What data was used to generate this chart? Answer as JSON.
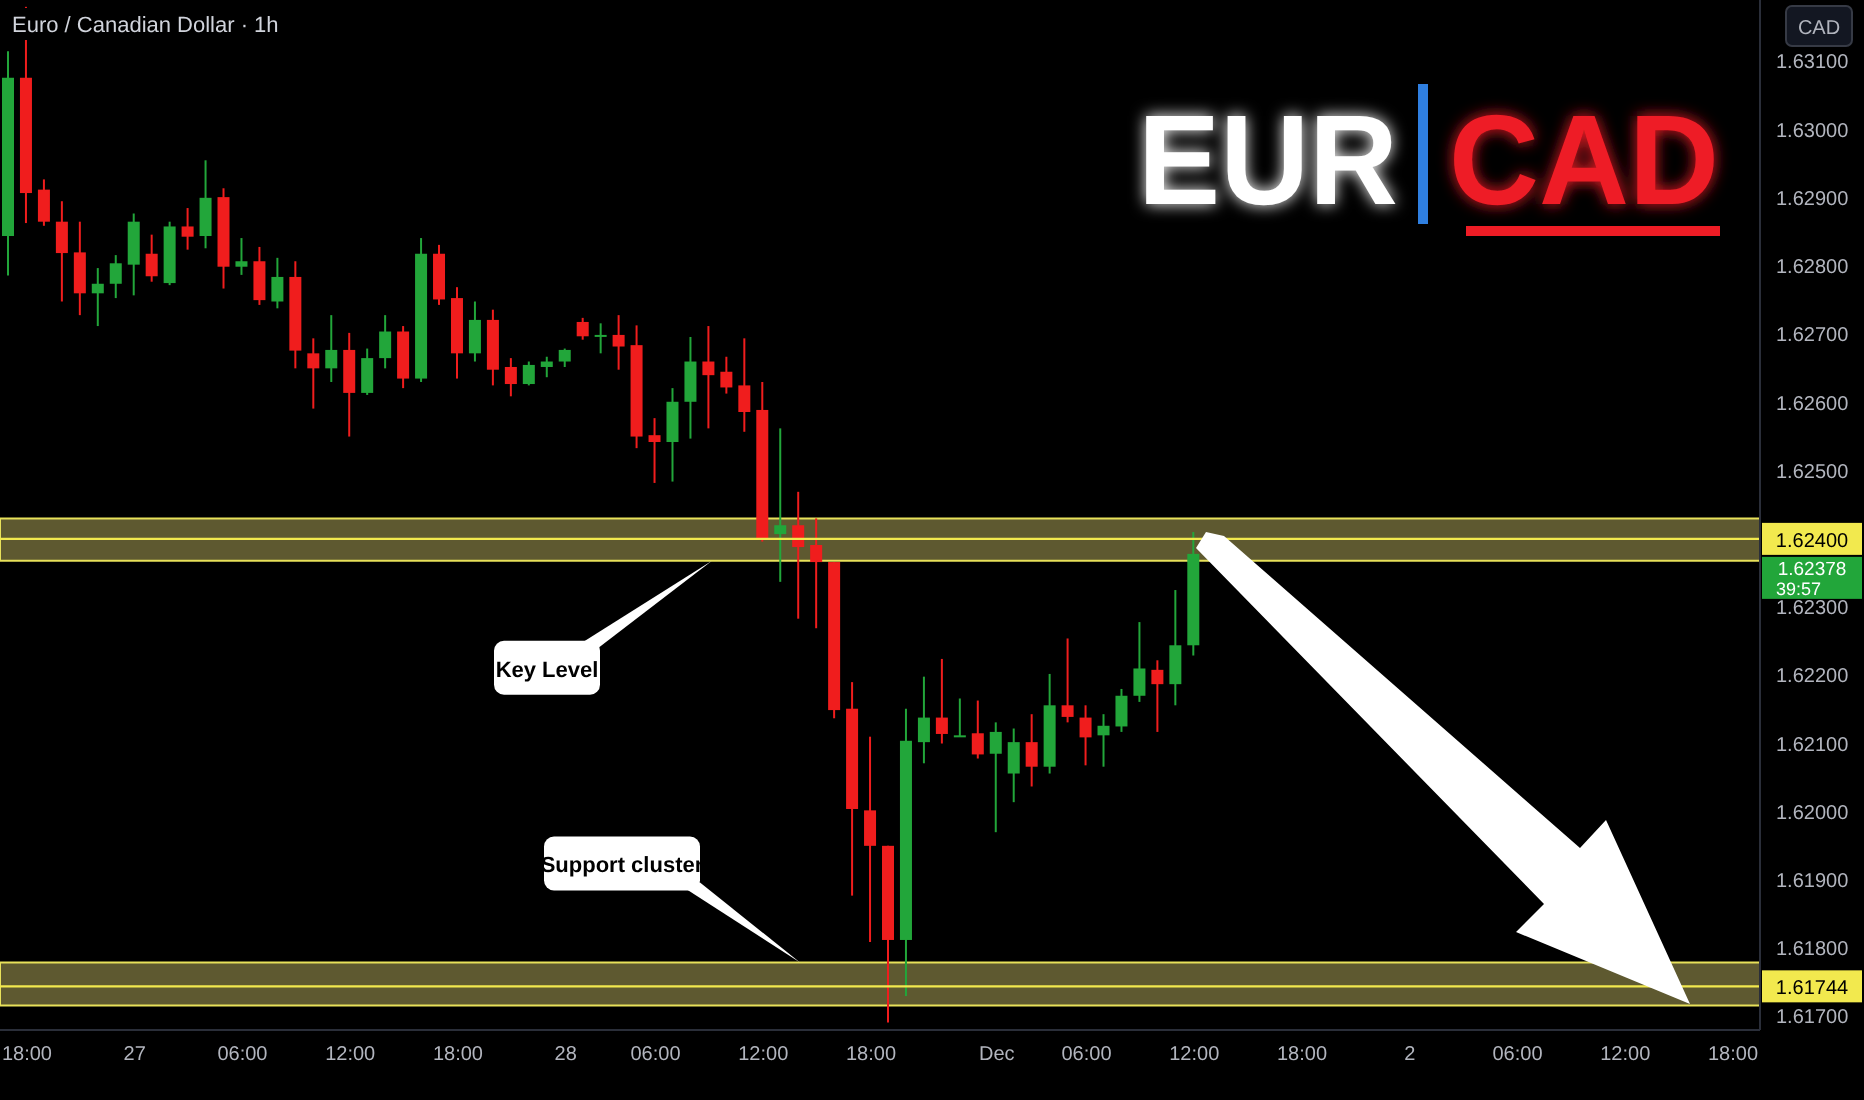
{
  "chart_data": {
    "type": "candlestick",
    "title": "Euro / Canadian Dollar · 1h",
    "ylabel": "CAD",
    "categories": [
      null,
      "18:00",
      null,
      null,
      null,
      null,
      null,
      "27",
      null,
      null,
      null,
      null,
      null,
      "06:00",
      null,
      null,
      null,
      null,
      null,
      "12:00",
      null,
      null,
      null,
      null,
      null,
      "18:00",
      null,
      null,
      null,
      null,
      null,
      "28",
      null,
      null,
      null,
      null,
      "06:00",
      null,
      null,
      null,
      null,
      null,
      "12:00",
      null,
      null,
      null,
      null,
      null,
      "18:00",
      null,
      null,
      null,
      null,
      null,
      null,
      "Dec",
      null,
      null,
      null,
      null,
      "06:00",
      null,
      null,
      null,
      null,
      null,
      "12:00",
      null,
      null,
      null,
      null,
      null,
      "18:00",
      null,
      null,
      null,
      null,
      null,
      "2",
      null,
      null,
      null,
      null,
      null,
      "06:00",
      null,
      null,
      null,
      null,
      null,
      "12:00",
      null,
      null,
      null,
      null,
      null,
      "18:00",
      null
    ],
    "ohlc": [
      [
        1.62844,
        1.63115,
        1.62786,
        1.63076
      ],
      [
        1.63076,
        1.6318,
        1.62863,
        1.62907
      ],
      [
        1.62912,
        1.62927,
        1.62859,
        1.62865
      ],
      [
        1.62865,
        1.62895,
        1.62748,
        1.62819
      ],
      [
        1.6282,
        1.62865,
        1.62728,
        1.6276
      ],
      [
        1.6276,
        1.62797,
        1.62712,
        1.62774
      ],
      [
        1.62774,
        1.62816,
        1.62753,
        1.62804
      ],
      [
        1.62802,
        1.62877,
        1.62757,
        1.62865
      ],
      [
        1.62818,
        1.62846,
        1.62777,
        1.62785
      ],
      [
        1.62775,
        1.62865,
        1.62772,
        1.62858
      ],
      [
        1.62858,
        1.62885,
        1.62824,
        1.62843
      ],
      [
        1.62844,
        1.62955,
        1.62826,
        1.629
      ],
      [
        1.62901,
        1.62914,
        1.62767,
        1.62799
      ],
      [
        1.62799,
        1.62841,
        1.62787,
        1.62807
      ],
      [
        1.62807,
        1.62828,
        1.62743,
        1.6275
      ],
      [
        1.62748,
        1.62812,
        1.62738,
        1.62784
      ],
      [
        1.62784,
        1.62807,
        1.6265,
        1.62676
      ],
      [
        1.62672,
        1.62694,
        1.62591,
        1.6265
      ],
      [
        1.6265,
        1.62728,
        1.6263,
        1.62677
      ],
      [
        1.62677,
        1.62702,
        1.6255,
        1.62614
      ],
      [
        1.62614,
        1.62679,
        1.62611,
        1.62665
      ],
      [
        1.62665,
        1.62728,
        1.6265,
        1.62704
      ],
      [
        1.62704,
        1.62712,
        1.62621,
        1.62635
      ],
      [
        1.62635,
        1.62841,
        1.6263,
        1.62818
      ],
      [
        1.62818,
        1.62831,
        1.62743,
        1.62751
      ],
      [
        1.62753,
        1.62769,
        1.62635,
        1.62672
      ],
      [
        1.62672,
        1.62748,
        1.6266,
        1.62721
      ],
      [
        1.62721,
        1.62736,
        1.62625,
        1.62648
      ],
      [
        1.62652,
        1.62665,
        1.62609,
        1.62627
      ],
      [
        1.62627,
        1.6266,
        1.62625,
        1.62655
      ],
      [
        1.62652,
        1.62667,
        1.62637,
        1.6266
      ],
      [
        1.6266,
        1.62679,
        1.62652,
        1.62677
      ],
      [
        1.62718,
        1.62724,
        1.62692,
        1.62697
      ],
      [
        1.62699,
        1.62716,
        1.62672,
        1.62699
      ],
      [
        1.62699,
        1.62728,
        1.62648,
        1.62682
      ],
      [
        1.62684,
        1.62713,
        1.62533,
        1.6255
      ],
      [
        1.62552,
        1.62577,
        1.62482,
        1.62542
      ],
      [
        1.62542,
        1.62621,
        1.62484,
        1.62601
      ],
      [
        1.62601,
        1.62696,
        1.62547,
        1.6266
      ],
      [
        1.6266,
        1.62712,
        1.62562,
        1.6264
      ],
      [
        1.62645,
        1.62667,
        1.62613,
        1.62622
      ],
      [
        1.62625,
        1.62694,
        1.62557,
        1.62586
      ],
      [
        1.62589,
        1.6263,
        1.62396,
        1.62401
      ],
      [
        1.62407,
        1.62562,
        1.62337,
        1.6242
      ],
      [
        1.6242,
        1.62469,
        1.62283,
        1.62388
      ],
      [
        1.62391,
        1.6243,
        1.62269,
        1.62366
      ],
      [
        1.62366,
        1.62366,
        1.62137,
        1.62149
      ],
      [
        1.62151,
        1.6219,
        1.61877,
        1.62004
      ],
      [
        1.62002,
        1.6211,
        1.61809,
        1.6195
      ],
      [
        1.6195,
        1.6195,
        1.61691,
        1.61812
      ],
      [
        1.61812,
        1.62151,
        1.6173,
        1.62104
      ],
      [
        1.62102,
        1.62198,
        1.62071,
        1.62138
      ],
      [
        1.62138,
        1.62224,
        1.621,
        1.62114
      ],
      [
        1.62112,
        1.62166,
        1.6211,
        1.62112
      ],
      [
        1.62115,
        1.62163,
        1.62078,
        1.62084
      ],
      [
        1.62085,
        1.62131,
        1.6197,
        1.62117
      ],
      [
        1.62056,
        1.62122,
        1.62014,
        1.62102
      ],
      [
        1.62102,
        1.62143,
        1.62037,
        1.62066
      ],
      [
        1.62066,
        1.62202,
        1.62056,
        1.62156
      ],
      [
        1.62156,
        1.62254,
        1.62131,
        1.62139
      ],
      [
        1.62138,
        1.62156,
        1.62068,
        1.62109
      ],
      [
        1.62112,
        1.62143,
        1.62066,
        1.62126
      ],
      [
        1.62125,
        1.6218,
        1.62117,
        1.6217
      ],
      [
        1.6217,
        1.62278,
        1.62161,
        1.6221
      ],
      [
        1.62208,
        1.62222,
        1.62117,
        1.62187
      ],
      [
        1.62187,
        1.62325,
        1.62156,
        1.62244
      ],
      [
        1.62244,
        1.6241,
        1.62229,
        1.62378
      ],
      null,
      null,
      null,
      null,
      null,
      null,
      null,
      null,
      null,
      null,
      null,
      null,
      null,
      null,
      null,
      null,
      null,
      null,
      null,
      null,
      null,
      null,
      null,
      null,
      null,
      null,
      null,
      null,
      null,
      null,
      null
    ],
    "colors": [
      "#22a63a",
      "#f01d1d",
      "#f01d1d",
      "#f01d1d",
      "#f01d1d",
      "#22a63a",
      "#22a63a",
      "#22a63a",
      "#f01d1d",
      "#22a63a",
      "#f01d1d",
      "#22a63a",
      "#f01d1d",
      "#22a63a",
      "#f01d1d",
      "#22a63a",
      "#f01d1d",
      "#f01d1d",
      "#22a63a",
      "#f01d1d",
      "#22a63a",
      "#22a63a",
      "#f01d1d",
      "#22a63a",
      "#f01d1d",
      "#f01d1d",
      "#22a63a",
      "#f01d1d",
      "#f01d1d",
      "#22a63a",
      "#22a63a",
      "#22a63a",
      "#f01d1d",
      "#22a63a",
      "#f01d1d",
      "#f01d1d",
      "#f01d1d",
      "#22a63a",
      "#22a63a",
      "#f01d1d",
      "#f01d1d",
      "#f01d1d",
      "#f01d1d",
      "#22a63a",
      "#f01d1d",
      "#f01d1d",
      "#f01d1d",
      "#f01d1d",
      "#f01d1d",
      "#f01d1d",
      "#22a63a",
      "#22a63a",
      "#f01d1d",
      "#22a63a",
      "#f01d1d",
      "#22a63a",
      "#22a63a",
      "#f01d1d",
      "#22a63a",
      "#f01d1d",
      "#f01d1d",
      "#22a63a",
      "#22a63a",
      "#22a63a",
      "#f01d1d",
      "#22a63a",
      "#22a63a",
      null,
      null,
      null,
      null,
      null,
      null,
      null,
      null,
      null,
      null,
      null,
      null,
      null,
      null,
      null,
      null,
      null,
      null,
      null,
      null,
      null,
      null,
      null,
      null,
      null,
      null,
      null,
      null,
      null,
      null,
      null
    ],
    "ylim": [
      1.6168,
      1.6319
    ],
    "yticks": [
      {
        "value": 1.617,
        "label": "1.61700"
      },
      {
        "value": 1.618,
        "label": "1.61800"
      },
      {
        "value": 1.619,
        "label": "1.61900"
      },
      {
        "value": 1.62,
        "label": "1.62000"
      },
      {
        "value": 1.621,
        "label": "1.62100"
      },
      {
        "value": 1.622,
        "label": "1.62200"
      },
      {
        "value": 1.623,
        "label": "1.62300"
      },
      {
        "value": 1.625,
        "label": "1.62500"
      },
      {
        "value": 1.626,
        "label": "1.62600"
      },
      {
        "value": 1.627,
        "label": "1.62700"
      },
      {
        "value": 1.628,
        "label": "1.62800"
      },
      {
        "value": 1.629,
        "label": "1.62900"
      },
      {
        "value": 1.63,
        "label": "1.63000"
      },
      {
        "value": 1.631,
        "label": "1.63100"
      }
    ],
    "ref_lines": [
      {
        "axis": "y",
        "value": 1.624,
        "label": "1.62400",
        "color": "#f2e94e"
      },
      {
        "axis": "y",
        "value": 1.61744,
        "label": "1.61744",
        "color": "#f2e94e"
      }
    ],
    "bands": [
      {
        "axis": "y",
        "from": 1.62368,
        "to": 1.6243,
        "color": "#6e6838"
      },
      {
        "axis": "y",
        "from": 1.61716,
        "to": 1.61779,
        "color": "#6e6838"
      }
    ],
    "annotations": [
      "Key Level",
      "Support cluster",
      "EUR",
      "CAD",
      "39:57",
      "1.62378"
    ]
  }
}
